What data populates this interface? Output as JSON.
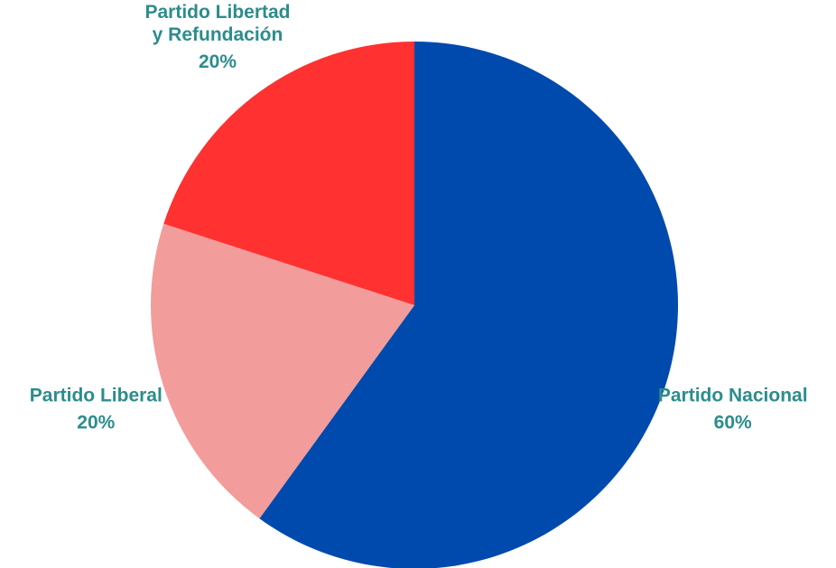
{
  "chart_data": {
    "type": "pie",
    "title": "",
    "slices": [
      {
        "name": "Partido Nacional",
        "label_lines": [
          "Partido Nacional"
        ],
        "value": 60,
        "value_label": "60%",
        "color": "#004aad"
      },
      {
        "name": "Partido Liberal",
        "label_lines": [
          "Partido Liberal"
        ],
        "value": 20,
        "value_label": "20%",
        "color": "#f29c9c"
      },
      {
        "name": "Partido Libertad y Refundación",
        "label_lines": [
          "Partido Libertad",
          "y Refundación"
        ],
        "value": 20,
        "value_label": "20%",
        "color": "#ff3131"
      }
    ],
    "start_angle_deg": 0,
    "direction": "clockwise",
    "label_color": "#2c8c8c",
    "legend": "none"
  }
}
